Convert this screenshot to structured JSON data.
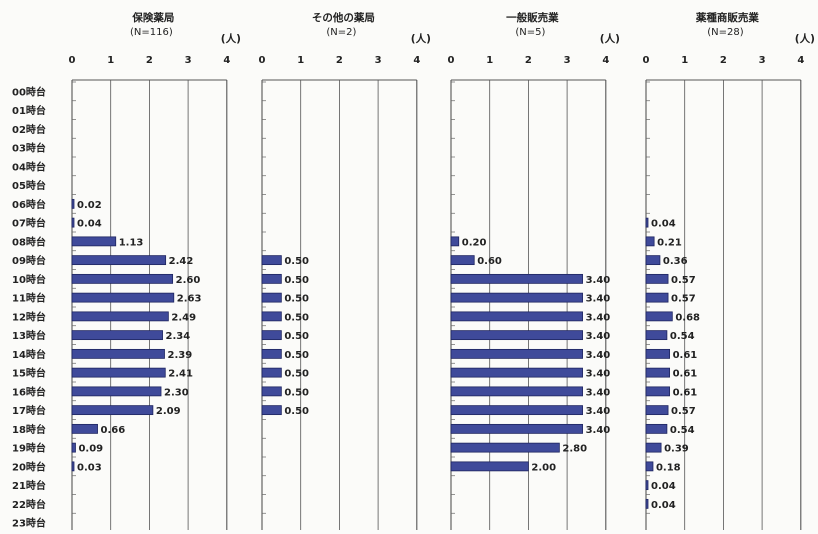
{
  "chart_data": {
    "type": "bar",
    "orientation": "horizontal",
    "unit_label": "(人)",
    "xlim": [
      0,
      4
    ],
    "x_ticks": [
      "0",
      "1",
      "2",
      "3",
      "4"
    ],
    "grid": true,
    "bar_color": "#3f4a9a",
    "categories": [
      "00時台",
      "01時台",
      "02時台",
      "03時台",
      "04時台",
      "05時台",
      "06時台",
      "07時台",
      "08時台",
      "09時台",
      "10時台",
      "11時台",
      "12時台",
      "13時台",
      "14時台",
      "15時台",
      "16時台",
      "17時台",
      "18時台",
      "19時台",
      "20時台",
      "21時台",
      "22時台",
      "23時台"
    ],
    "panels": [
      {
        "title": "保険薬局",
        "subtitle": "(N=116)",
        "values": [
          null,
          null,
          null,
          null,
          null,
          null,
          0.02,
          0.04,
          1.13,
          2.42,
          2.6,
          2.63,
          2.49,
          2.34,
          2.39,
          2.41,
          2.3,
          2.09,
          0.66,
          0.09,
          0.03,
          null,
          null,
          null
        ],
        "labels": [
          "",
          "",
          "",
          "",
          "",
          "",
          "0.02",
          "0.04",
          "1.13",
          "2.42",
          "2.60",
          "2.63",
          "2.49",
          "2.34",
          "2.39",
          "2.41",
          "2.30",
          "2.09",
          "0.66",
          "0.09",
          "0.03",
          "",
          "",
          ""
        ]
      },
      {
        "title": "その他の薬局",
        "subtitle": "(N=2)",
        "values": [
          null,
          null,
          null,
          null,
          null,
          null,
          null,
          null,
          null,
          0.5,
          0.5,
          0.5,
          0.5,
          0.5,
          0.5,
          0.5,
          0.5,
          0.5,
          null,
          null,
          null,
          null,
          null,
          null
        ],
        "labels": [
          "",
          "",
          "",
          "",
          "",
          "",
          "",
          "",
          "",
          "0.50",
          "0.50",
          "0.50",
          "0.50",
          "0.50",
          "0.50",
          "0.50",
          "0.50",
          "0.50",
          "",
          "",
          "",
          "",
          "",
          ""
        ]
      },
      {
        "title": "一般販売業",
        "subtitle": "(N=5)",
        "values": [
          null,
          null,
          null,
          null,
          null,
          null,
          null,
          null,
          0.2,
          0.6,
          3.4,
          3.4,
          3.4,
          3.4,
          3.4,
          3.4,
          3.4,
          3.4,
          3.4,
          2.8,
          2.0,
          null,
          null,
          null
        ],
        "labels": [
          "",
          "",
          "",
          "",
          "",
          "",
          "",
          "",
          "0.20",
          "0.60",
          "3.40",
          "3.40",
          "3.40",
          "3.40",
          "3.40",
          "3.40",
          "3.40",
          "3.40",
          "3.40",
          "2.80",
          "2.00",
          "",
          "",
          ""
        ]
      },
      {
        "title": "薬種商販売業",
        "subtitle": "(N=28)",
        "values": [
          null,
          null,
          null,
          null,
          null,
          null,
          null,
          0.04,
          0.21,
          0.36,
          0.57,
          0.57,
          0.68,
          0.54,
          0.61,
          0.61,
          0.61,
          0.57,
          0.54,
          0.39,
          0.18,
          0.04,
          0.04,
          null
        ],
        "labels": [
          "",
          "",
          "",
          "",
          "",
          "",
          "",
          "0.04",
          "0.21",
          "0.36",
          "0.57",
          "0.57",
          "0.68",
          "0.54",
          "0.61",
          "0.61",
          "0.61",
          "0.57",
          "0.54",
          "0.39",
          "0.18",
          "0.04",
          "0.04",
          ""
        ]
      }
    ]
  }
}
